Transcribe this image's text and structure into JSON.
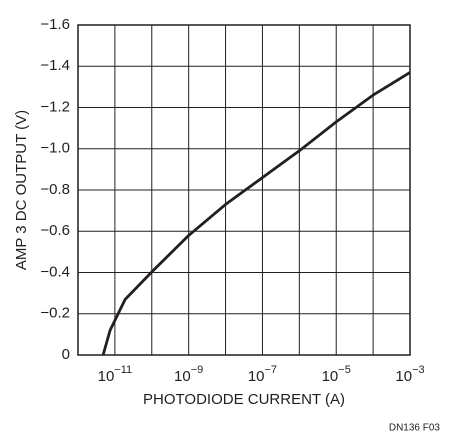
{
  "chart_data": {
    "type": "line",
    "y_label": "AMP 3 DC OUTPUT (V)",
    "x_label": "PHOTODIODE CURRENT (A)",
    "footnote": "DN136 F03",
    "log_x": true,
    "grid": true,
    "color": "#231f20",
    "xlim": [
      1e-12,
      0.001
    ],
    "xticks": [
      {
        "value": 1e-11,
        "label": "10",
        "exponent": "−11"
      },
      {
        "value": 1e-09,
        "label": "10",
        "exponent": "−9"
      },
      {
        "value": 1e-07,
        "label": "10",
        "exponent": "−7"
      },
      {
        "value": 1e-05,
        "label": "10",
        "exponent": "−5"
      },
      {
        "value": 0.001,
        "label": "10",
        "exponent": "−3"
      }
    ],
    "minor_xticks": [
      1e-12,
      1e-10,
      1e-08,
      1e-06,
      0.0001
    ],
    "ylim": [
      0,
      -1.6
    ],
    "yticks": [
      0,
      {
        "value": -0.2,
        "label": "−0.2"
      },
      {
        "value": -0.4,
        "label": "−0.4"
      },
      {
        "value": -0.6,
        "label": "−0.6"
      },
      {
        "value": -0.8,
        "label": "−0.8"
      },
      {
        "value": -1.0,
        "label": "−1.0"
      },
      {
        "value": -1.2,
        "label": "−1.2"
      },
      {
        "value": -1.4,
        "label": "−1.4"
      },
      {
        "value": -1.6,
        "label": "−1.6"
      }
    ],
    "x": [
      4.8e-12,
      7.4e-12,
      1.9e-11,
      1.1e-10,
      1e-09,
      1e-08,
      1e-07,
      1e-06,
      1e-05,
      0.0001,
      0.001
    ],
    "values": [
      0,
      -0.12,
      -0.27,
      -0.41,
      -0.58,
      -0.73,
      -0.86,
      -0.99,
      -1.13,
      -1.26,
      -1.37
    ]
  }
}
